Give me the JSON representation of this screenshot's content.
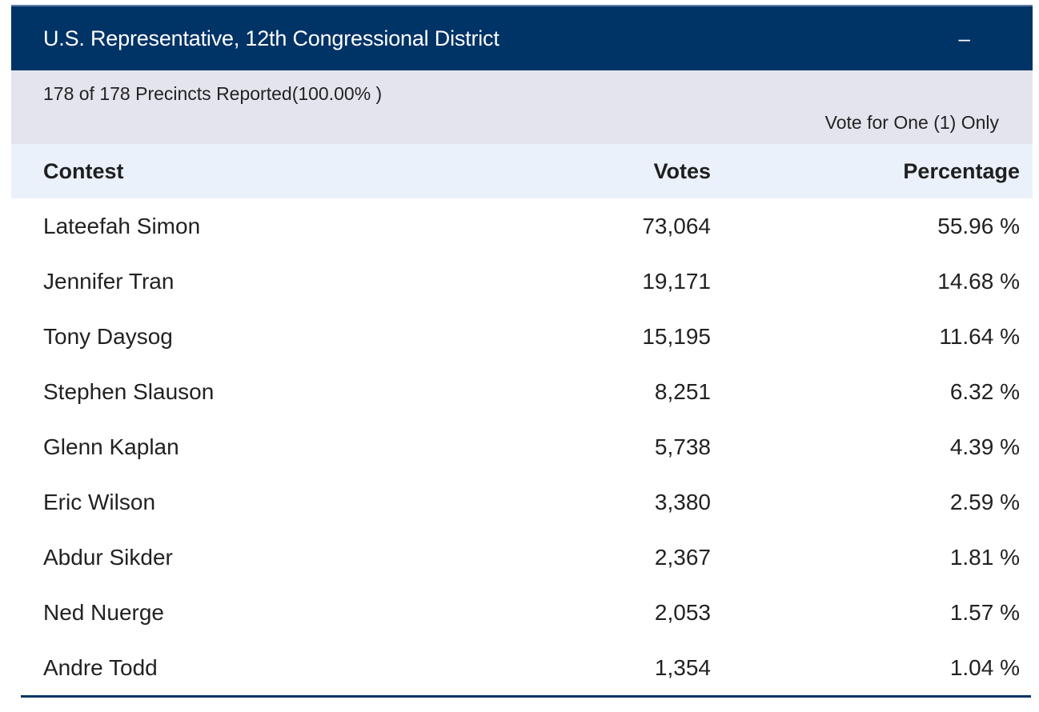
{
  "contest": {
    "title": "U.S. Representative, 12th Congressional District",
    "collapse_label": "–",
    "precincts_text": "178 of 178 Precincts Reported(100.00% )",
    "vote_for_text": "Vote for One (1) Only"
  },
  "table": {
    "headers": {
      "contest": "Contest",
      "votes": "Votes",
      "percentage": "Percentage"
    },
    "rows": [
      {
        "name": "Lateefah Simon",
        "votes": "73,064",
        "percentage": "55.96 %"
      },
      {
        "name": "Jennifer Tran",
        "votes": "19,171",
        "percentage": "14.68 %"
      },
      {
        "name": "Tony Daysog",
        "votes": "15,195",
        "percentage": "11.64 %"
      },
      {
        "name": "Stephen Slauson",
        "votes": "8,251",
        "percentage": "6.32 %"
      },
      {
        "name": "Glenn Kaplan",
        "votes": "5,738",
        "percentage": "4.39 %"
      },
      {
        "name": "Eric Wilson",
        "votes": "3,380",
        "percentage": "2.59 %"
      },
      {
        "name": "Abdur Sikder",
        "votes": "2,367",
        "percentage": "1.81 %"
      },
      {
        "name": "Ned Nuerge",
        "votes": "2,053",
        "percentage": "1.57 %"
      },
      {
        "name": "Andre Todd",
        "votes": "1,354",
        "percentage": "1.04 %"
      }
    ]
  },
  "colors": {
    "header_bg": "#003366",
    "subhead_bg": "#e4e4ee",
    "table_head_bg": "#eaf1fb"
  }
}
